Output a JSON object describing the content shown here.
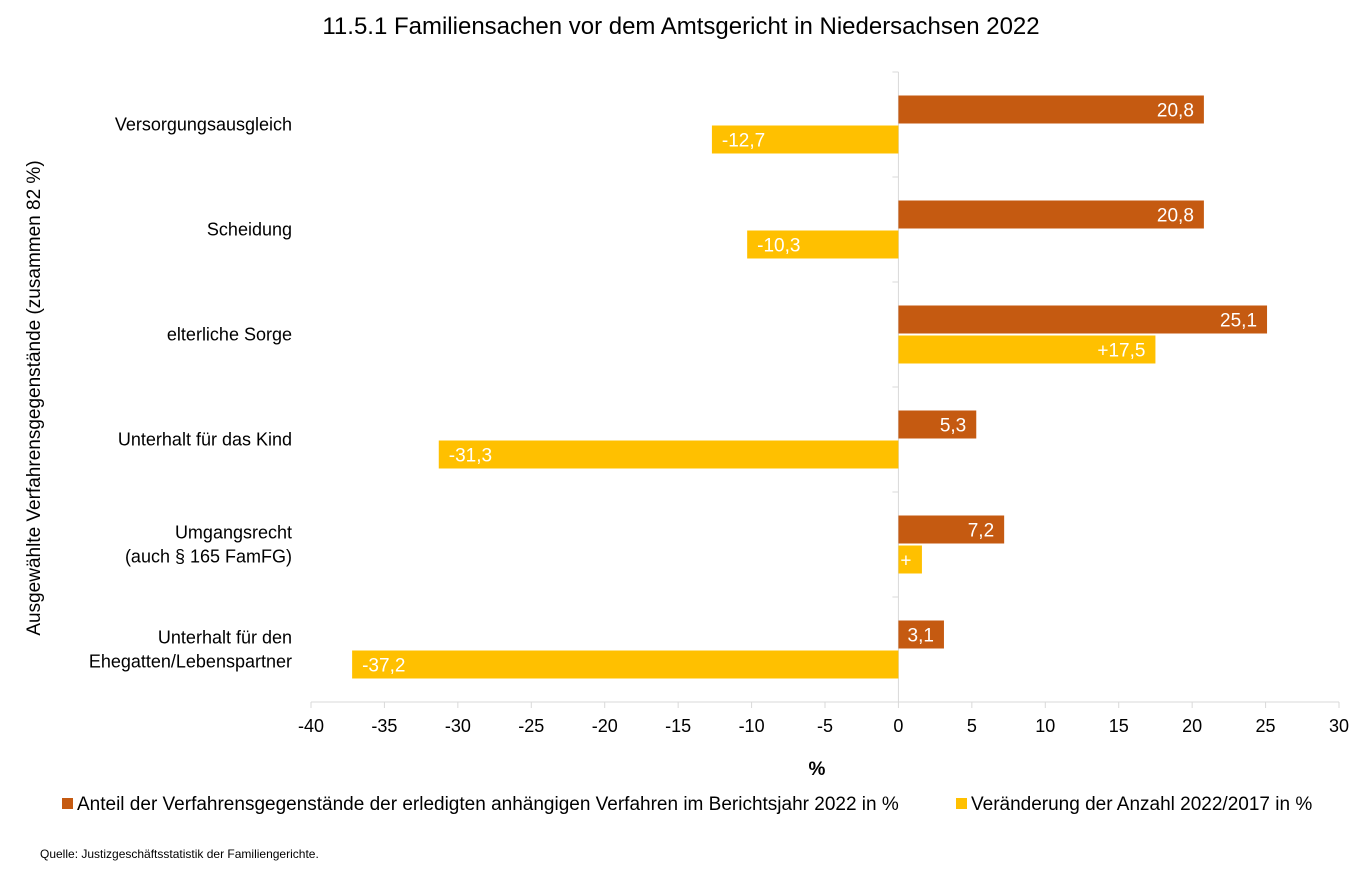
{
  "chart_data": {
    "type": "bar",
    "orientation": "horizontal",
    "title": "11.5.1 Familiensachen vor dem Amtsgericht in Niedersachsen 2022",
    "xlabel": "%",
    "ylabel": "Ausgewählte Verfahrensgegenstände (zusammen 82 %)",
    "xlim": [
      -40,
      30
    ],
    "xticks": [
      -40,
      -35,
      -30,
      -25,
      -20,
      -15,
      -10,
      -5,
      0,
      5,
      10,
      15,
      20,
      25,
      30
    ],
    "categories": [
      [
        "Versorgungsausgleich"
      ],
      [
        "Scheidung"
      ],
      [
        "elterliche Sorge"
      ],
      [
        "Unterhalt für das Kind"
      ],
      [
        "Umgangsrecht",
        "(auch § 165 FamFG)"
      ],
      [
        "Unterhalt für den",
        "Ehegatten/Lebenspartner"
      ]
    ],
    "series": [
      {
        "name": "Anteil der Verfahrensgegenstände der erledigten anhängigen Verfahren im Berichtsjahr 2022 in %",
        "color": "#C55A11",
        "values": [
          20.8,
          20.8,
          25.1,
          5.3,
          7.2,
          3.1
        ],
        "labels": [
          "20,8",
          "20,8",
          "25,1",
          "5,3",
          "7,2",
          "3,1"
        ]
      },
      {
        "name": "Veränderung der Anzahl 2022/2017 in %",
        "color": "#FFC000",
        "values": [
          -12.7,
          -10.3,
          17.5,
          -31.3,
          1.6,
          -37.2
        ],
        "labels": [
          "-12,7",
          "-10,3",
          "+17,5",
          "-31,3",
          "+",
          "-37,2"
        ]
      }
    ],
    "legend_position": "bottom",
    "grid": false
  },
  "source": "Quelle: Justizgeschäftsstatistik der Familiengerichte."
}
